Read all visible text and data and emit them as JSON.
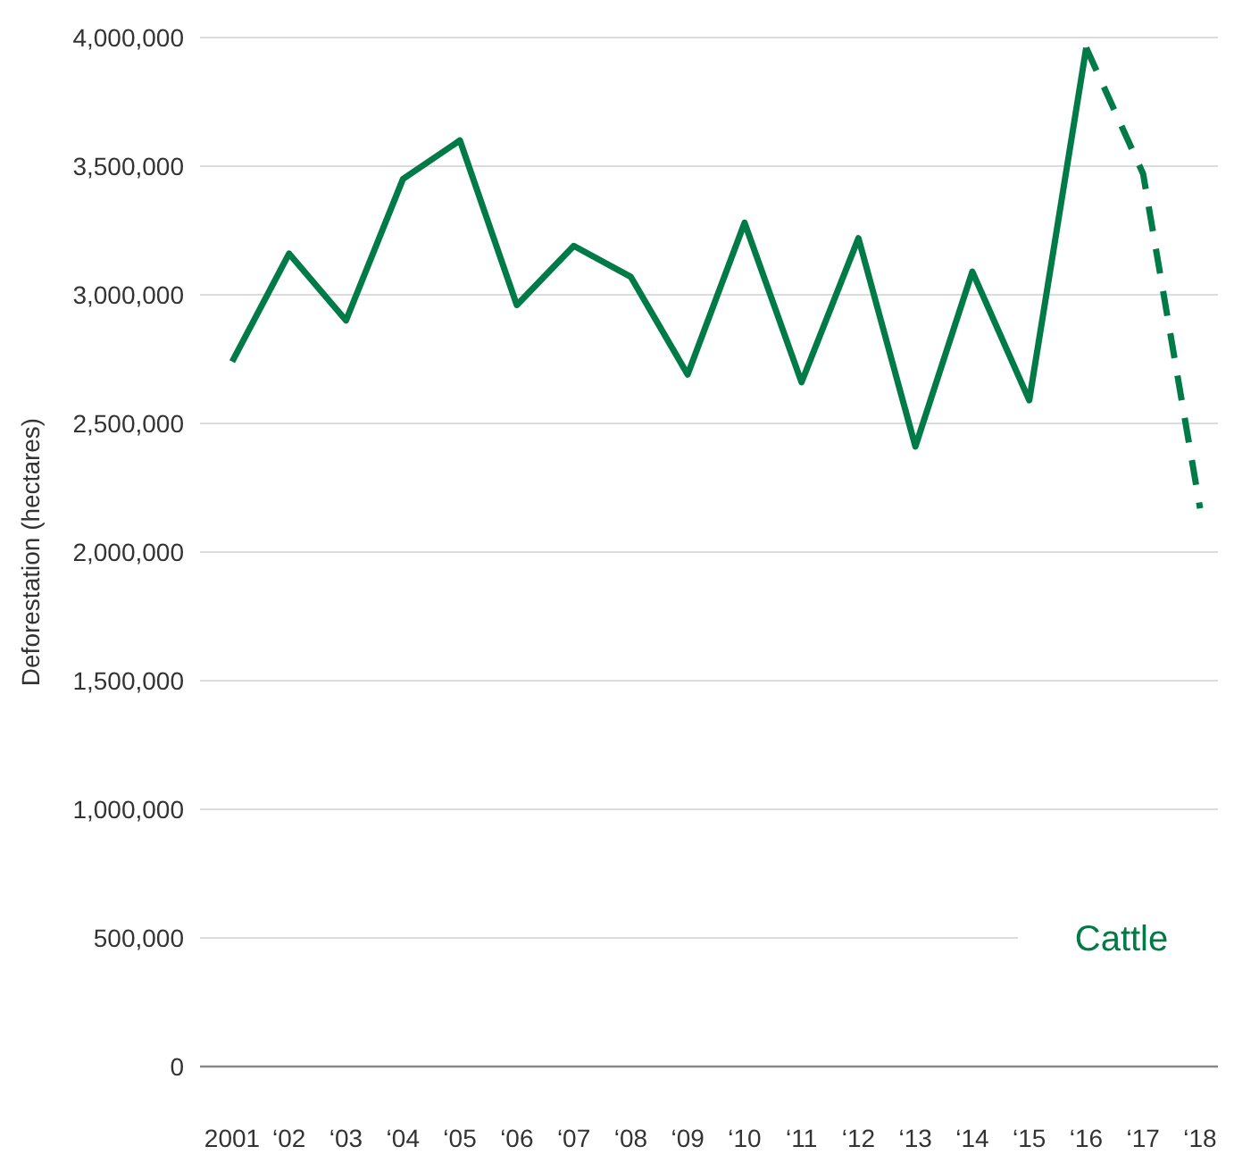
{
  "chart_data": {
    "type": "line",
    "ylabel": "Deforestation (hectares)",
    "categories": [
      "2001",
      "‘02",
      "‘03",
      "‘04",
      "‘05",
      "‘06",
      "‘07",
      "‘08",
      "‘09",
      "‘10",
      "‘11",
      "‘12",
      "‘13",
      "‘14",
      "‘15",
      "‘16",
      "‘17",
      "‘18"
    ],
    "series": [
      {
        "name": "Cattle",
        "color": "#007a47",
        "line_style": "solid",
        "values": [
          2740000,
          3160000,
          2900000,
          3450000,
          3600000,
          2960000,
          3190000,
          3070000,
          2690000,
          3280000,
          2660000,
          3220000,
          2410000,
          3090000,
          2590000,
          3960000,
          null,
          null
        ]
      },
      {
        "color": "#007a47",
        "line_style": "dashed",
        "values": [
          null,
          null,
          null,
          null,
          null,
          null,
          null,
          null,
          null,
          null,
          null,
          null,
          null,
          null,
          null,
          3960000,
          3470000,
          2170000
        ]
      }
    ],
    "ylim": [
      0,
      4000000
    ],
    "yticks": [
      {
        "value": 0,
        "label": "0"
      },
      {
        "value": 500000,
        "label": "500,000"
      },
      {
        "value": 1000000,
        "label": "1,000,000"
      },
      {
        "value": 1500000,
        "label": "1,500,000"
      },
      {
        "value": 2000000,
        "label": "2,000,000"
      },
      {
        "value": 2500000,
        "label": "2,500,000"
      },
      {
        "value": 3000000,
        "label": "3,000,000"
      },
      {
        "value": 3500000,
        "label": "3,500,000"
      },
      {
        "value": 4000000,
        "label": "4,000,000"
      }
    ],
    "grid": "y",
    "marker": "none"
  }
}
